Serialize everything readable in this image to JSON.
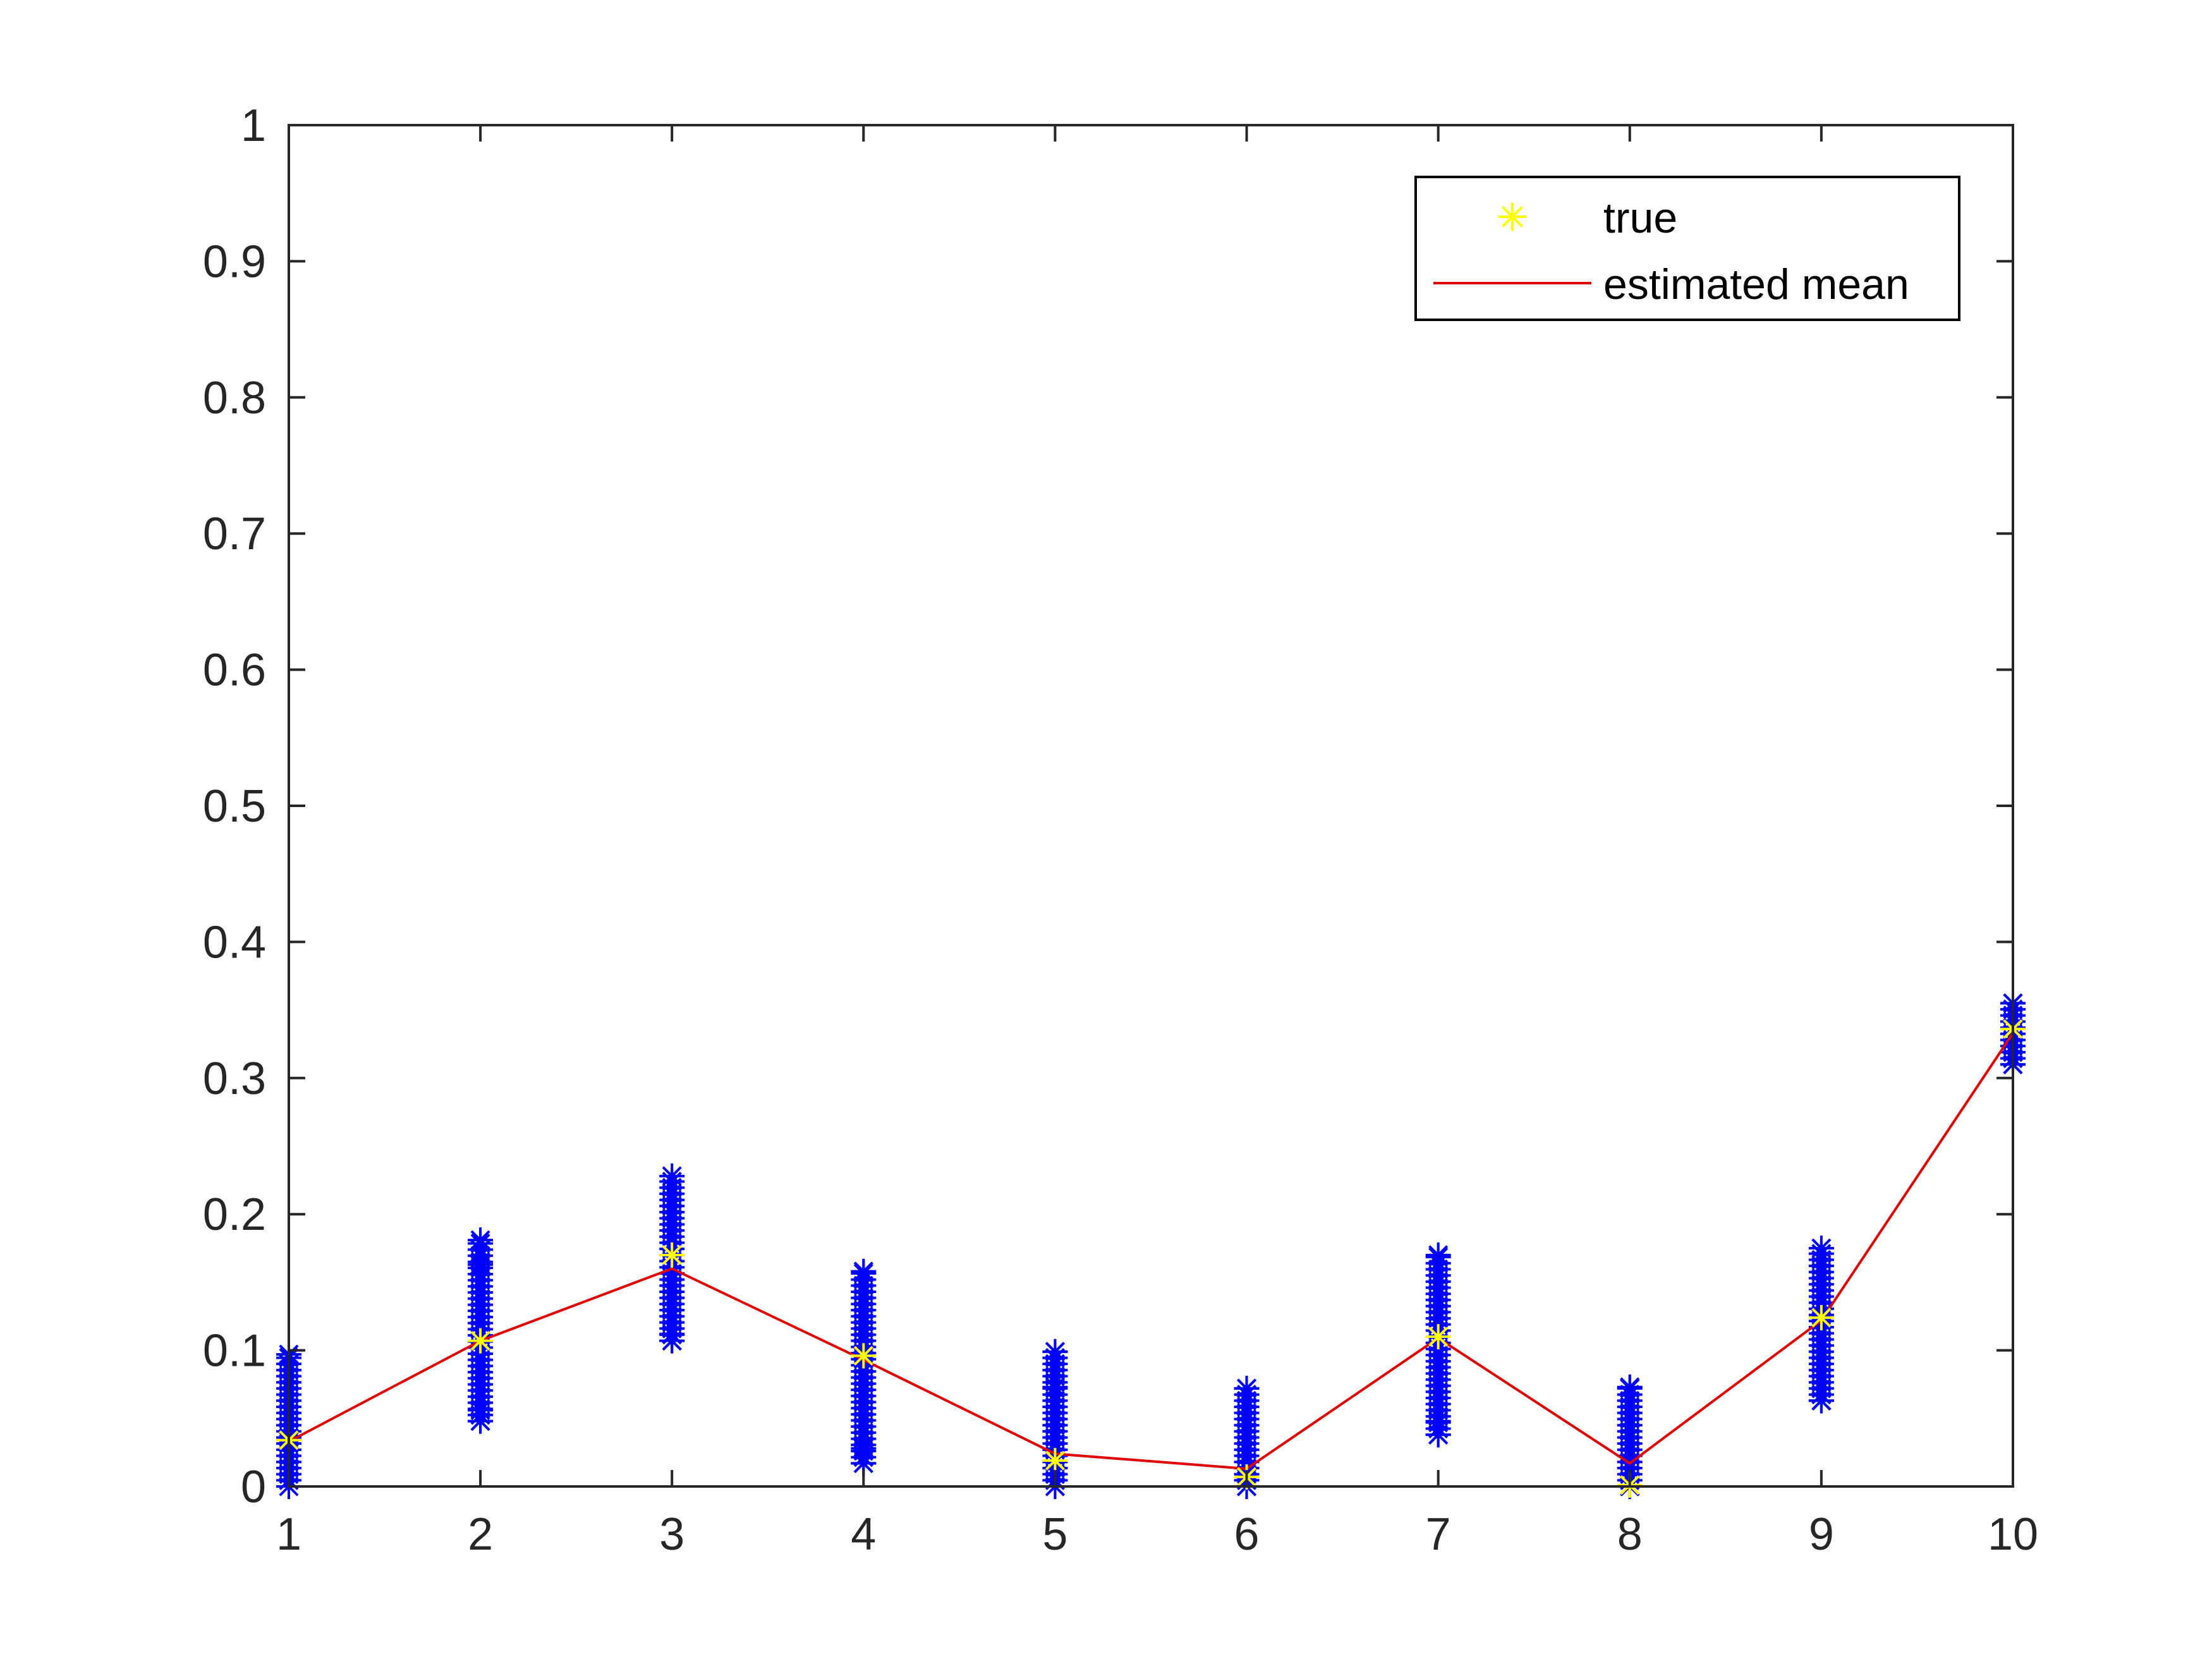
{
  "chart_data": {
    "type": "scatter",
    "x_ticks": [
      "1",
      "2",
      "3",
      "4",
      "5",
      "6",
      "7",
      "8",
      "9",
      "10"
    ],
    "y_ticks": [
      "0",
      "0.1",
      "0.2",
      "0.3",
      "0.4",
      "0.5",
      "0.6",
      "0.7",
      "0.8",
      "0.9",
      "1"
    ],
    "xlim": [
      1,
      10
    ],
    "ylim": [
      0,
      1
    ],
    "grid": false,
    "legend_position": "top-right",
    "legend": [
      {
        "label": "true",
        "marker": "asterisk",
        "color": "#FFFF00"
      },
      {
        "label": "estimated mean",
        "marker": "line",
        "color": "#E00000"
      }
    ],
    "samples": {
      "color": "#0000FF",
      "marker": "asterisk",
      "x": [
        1,
        2,
        3,
        4,
        5,
        6,
        7,
        8,
        9,
        10
      ],
      "ranges": [
        [
          0.0,
          0.097
        ],
        [
          0.048,
          0.181
        ],
        [
          0.107,
          0.228
        ],
        [
          0.017,
          0.158
        ],
        [
          0.0,
          0.099
        ],
        [
          0.0,
          0.072
        ],
        [
          0.038,
          0.17
        ],
        [
          0.0,
          0.073
        ],
        [
          0.063,
          0.175
        ],
        [
          0.31,
          0.355
        ]
      ],
      "outliers": [
        [
          1,
          0.097
        ],
        [
          2,
          0.181
        ],
        [
          2,
          0.163
        ],
        [
          2,
          0.048
        ],
        [
          2,
          0.056
        ],
        [
          3,
          0.228
        ],
        [
          3,
          0.107
        ],
        [
          3,
          0.112
        ],
        [
          4,
          0.158
        ],
        [
          4,
          0.017
        ],
        [
          4,
          0.028
        ],
        [
          5,
          0.099
        ],
        [
          5,
          0.073
        ],
        [
          5,
          0.0
        ],
        [
          6,
          0.072
        ],
        [
          6,
          0.0
        ],
        [
          7,
          0.17
        ],
        [
          7,
          0.038
        ],
        [
          7,
          0.048
        ],
        [
          8,
          0.073
        ],
        [
          8,
          0.0
        ],
        [
          9,
          0.175
        ],
        [
          9,
          0.063
        ],
        [
          10,
          0.355
        ],
        [
          10,
          0.31
        ]
      ]
    },
    "series": [
      {
        "name": "true",
        "x": [
          1,
          2,
          3,
          4,
          5,
          6,
          7,
          8,
          9,
          10
        ],
        "y": [
          0.034,
          0.107,
          0.17,
          0.096,
          0.019,
          0.007,
          0.11,
          0.001,
          0.124,
          0.336
        ]
      },
      {
        "name": "estimated mean",
        "x": [
          1,
          2,
          3,
          4,
          5,
          6,
          7,
          8,
          9,
          10
        ],
        "y": [
          0.033,
          0.107,
          0.16,
          0.093,
          0.024,
          0.013,
          0.109,
          0.017,
          0.122,
          0.333
        ]
      }
    ]
  }
}
